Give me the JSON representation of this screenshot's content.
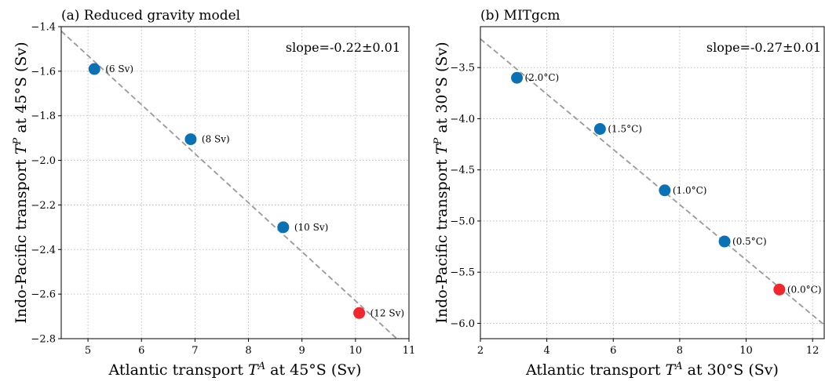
{
  "chart_data": [
    {
      "type": "scatter",
      "title": "(a) Reduced gravity model",
      "xlabel_text": "Atlantic transport ",
      "xlabel_sym": "T",
      "xlabel_sup": "A",
      "xlabel_tail": " at 45°S (Sv)",
      "ylabel_text": "Indo-Pacific transport ",
      "ylabel_sym": "T",
      "ylabel_sup": "P",
      "ylabel_tail": " at 45°S (Sv)",
      "xlim": [
        4.5,
        11
      ],
      "ylim": [
        -2.8,
        -1.4
      ],
      "xticks": [
        5,
        6,
        7,
        8,
        9,
        10,
        11
      ],
      "xtick_labels": [
        "5",
        "6",
        "7",
        "8",
        "9",
        "10",
        "11"
      ],
      "yticks": [
        -2.8,
        -2.6,
        -2.4,
        -2.2,
        -2.0,
        -1.8,
        -1.6,
        -1.4
      ],
      "ytick_labels": [
        "−2.8",
        "−2.6",
        "−2.4",
        "−2.2",
        "−2.0",
        "−1.8",
        "−1.6",
        "−1.4"
      ],
      "grid": true,
      "annotation": "slope=-0.22±0.01",
      "fit_line": {
        "slope": -0.22,
        "intercept": -0.43
      },
      "points": [
        {
          "x": 5.12,
          "y": -1.59,
          "label": "(6 Sv)",
          "color": "#0a72b4"
        },
        {
          "x": 6.92,
          "y": -1.905,
          "label": "(8 Sv)",
          "color": "#0a72b4"
        },
        {
          "x": 8.65,
          "y": -2.3,
          "label": "(10 Sv)",
          "color": "#0a72b4"
        },
        {
          "x": 10.07,
          "y": -2.685,
          "label": "(12 Sv)",
          "color": "#f0282d"
        }
      ]
    },
    {
      "type": "scatter",
      "title": "(b) MITgcm",
      "xlabel_text": "Atlantic transport ",
      "xlabel_sym": "T",
      "xlabel_sup": "A",
      "xlabel_tail": " at 30°S (Sv)",
      "ylabel_text": "Indo-Pacific transport ",
      "ylabel_sym": "T",
      "ylabel_sup": "P",
      "ylabel_tail": " at 30°S (Sv)",
      "xlim": [
        2,
        12.35
      ],
      "ylim": [
        -6.15,
        -3.1
      ],
      "xticks": [
        2,
        4,
        6,
        8,
        10,
        12
      ],
      "xtick_labels": [
        "2",
        "4",
        "6",
        "8",
        "10",
        "12"
      ],
      "yticks": [
        -6.0,
        -5.5,
        -5.0,
        -4.5,
        -4.0,
        -3.5
      ],
      "ytick_labels": [
        "−6.0",
        "−5.5",
        "−5.0",
        "−4.5",
        "−4.0",
        "−3.5"
      ],
      "grid": true,
      "annotation": "slope=-0.27±0.01",
      "fit_line": {
        "slope": -0.27,
        "intercept": -2.68
      },
      "points": [
        {
          "x": 3.1,
          "y": -3.6,
          "label": "(2.0°C)",
          "color": "#0a72b4"
        },
        {
          "x": 5.6,
          "y": -4.1,
          "label": "(1.5°C)",
          "color": "#0a72b4"
        },
        {
          "x": 7.55,
          "y": -4.7,
          "label": "(1.0°C)",
          "color": "#0a72b4"
        },
        {
          "x": 9.35,
          "y": -5.2,
          "label": "(0.5°C)",
          "color": "#0a72b4"
        },
        {
          "x": 11.0,
          "y": -5.67,
          "label": "(0.0°C)",
          "color": "#f0282d"
        }
      ]
    }
  ]
}
